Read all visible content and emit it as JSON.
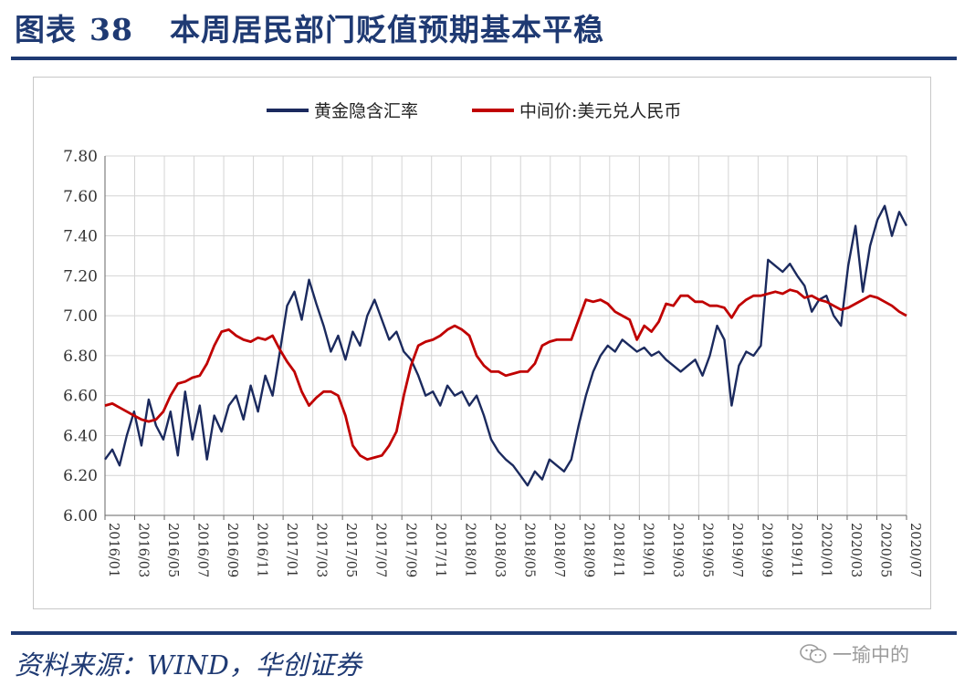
{
  "title": {
    "label": "图表",
    "number": "38",
    "text": "本周居民部门贬值预期基本平稳"
  },
  "footer": {
    "source": "资料来源：WIND，华创证券",
    "watermark": "一瑜中的",
    "watermark_icon": "wechat-icon"
  },
  "colors": {
    "navy": "#1f3a73",
    "series_gold": "#1b2a5e",
    "series_cny": "#c00000",
    "grid": "#d4d4d4"
  },
  "chart_data": {
    "type": "line",
    "title": "本周居民部门贬值预期基本平稳",
    "xlabel": "",
    "ylabel": "",
    "ylim": [
      6.0,
      7.8
    ],
    "yticks": [
      "7.80",
      "7.60",
      "7.40",
      "7.20",
      "7.00",
      "6.80",
      "6.60",
      "6.40",
      "6.20",
      "6.00"
    ],
    "xlim": [
      0,
      55
    ],
    "x_ticks": [
      "2016/01",
      "2016/03",
      "2016/05",
      "2016/07",
      "2016/09",
      "2016/11",
      "2017/01",
      "2017/03",
      "2017/05",
      "2017/07",
      "2017/09",
      "2017/11",
      "2018/01",
      "2018/03",
      "2018/05",
      "2018/07",
      "2018/09",
      "2018/11",
      "2019/01",
      "2019/03",
      "2019/05",
      "2019/07",
      "2019/09",
      "2019/11",
      "2020/01",
      "2020/03",
      "2020/05",
      "2020/07"
    ],
    "grid": true,
    "legend_position": "top-center",
    "series": [
      {
        "name": "黄金隐含汇率",
        "color": "#1b2a5e",
        "x": [
          0,
          0.5,
          1,
          1.5,
          2,
          2.5,
          3,
          3.5,
          4,
          4.5,
          5,
          5.5,
          6,
          6.5,
          7,
          7.5,
          8,
          8.5,
          9,
          9.5,
          10,
          10.5,
          11,
          11.5,
          12,
          12.5,
          13,
          13.5,
          14,
          14.5,
          15,
          15.5,
          16,
          16.5,
          17,
          17.5,
          18,
          18.5,
          19,
          19.5,
          20,
          20.5,
          21,
          21.5,
          22,
          22.5,
          23,
          23.5,
          24,
          24.5,
          25,
          25.5,
          26,
          26.5,
          27,
          27.5,
          28,
          28.5,
          29,
          29.5,
          30,
          30.5,
          31,
          31.5,
          32,
          32.5,
          33,
          33.5,
          34,
          34.5,
          35,
          35.5,
          36,
          36.5,
          37,
          37.5,
          38,
          38.5,
          39,
          39.5,
          40,
          40.5,
          41,
          41.5,
          42,
          42.5,
          43,
          43.5,
          44,
          44.5,
          45,
          45.5,
          46,
          46.5,
          47,
          47.5,
          48,
          48.5,
          49,
          49.5,
          50,
          50.5,
          51,
          51.5,
          52,
          52.5,
          53,
          53.5,
          54,
          54.5,
          55
        ],
        "values": [
          6.28,
          6.33,
          6.25,
          6.4,
          6.52,
          6.35,
          6.58,
          6.45,
          6.38,
          6.52,
          6.3,
          6.62,
          6.38,
          6.55,
          6.28,
          6.5,
          6.42,
          6.55,
          6.6,
          6.48,
          6.65,
          6.52,
          6.7,
          6.6,
          6.82,
          7.05,
          7.12,
          6.98,
          7.18,
          7.06,
          6.95,
          6.82,
          6.9,
          6.78,
          6.92,
          6.85,
          7.0,
          7.08,
          6.98,
          6.88,
          6.92,
          6.82,
          6.78,
          6.7,
          6.6,
          6.62,
          6.55,
          6.65,
          6.6,
          6.62,
          6.55,
          6.6,
          6.5,
          6.38,
          6.32,
          6.28,
          6.25,
          6.2,
          6.15,
          6.22,
          6.18,
          6.28,
          6.25,
          6.22,
          6.28,
          6.45,
          6.6,
          6.72,
          6.8,
          6.85,
          6.82,
          6.88,
          6.85,
          6.82,
          6.84,
          6.8,
          6.82,
          6.78,
          6.75,
          6.72,
          6.75,
          6.78,
          6.7,
          6.8,
          6.95,
          6.88,
          6.55,
          6.75,
          6.82,
          6.8,
          6.85,
          7.28,
          7.25,
          7.22,
          7.26,
          7.2,
          7.15,
          7.02,
          7.08,
          7.1,
          7.0,
          6.95,
          7.25,
          7.45,
          7.12,
          7.35,
          7.48,
          7.55,
          7.4,
          7.52,
          7.45
        ]
      },
      {
        "name": "中间价:美元兑人民币",
        "color": "#c00000",
        "x": [
          0,
          0.5,
          1,
          1.5,
          2,
          2.5,
          3,
          3.5,
          4,
          4.5,
          5,
          5.5,
          6,
          6.5,
          7,
          7.5,
          8,
          8.5,
          9,
          9.5,
          10,
          10.5,
          11,
          11.5,
          12,
          12.5,
          13,
          13.5,
          14,
          14.5,
          15,
          15.5,
          16,
          16.5,
          17,
          17.5,
          18,
          18.5,
          19,
          19.5,
          20,
          20.5,
          21,
          21.5,
          22,
          22.5,
          23,
          23.5,
          24,
          24.5,
          25,
          25.5,
          26,
          26.5,
          27,
          27.5,
          28,
          28.5,
          29,
          29.5,
          30,
          30.5,
          31,
          31.5,
          32,
          32.5,
          33,
          33.5,
          34,
          34.5,
          35,
          35.5,
          36,
          36.5,
          37,
          37.5,
          38,
          38.5,
          39,
          39.5,
          40,
          40.5,
          41,
          41.5,
          42,
          42.5,
          43,
          43.5,
          44,
          44.5,
          45,
          45.5,
          46,
          46.5,
          47,
          47.5,
          48,
          48.5,
          49,
          49.5,
          50,
          50.5,
          51,
          51.5,
          52,
          52.5,
          53,
          53.5,
          54,
          54.5,
          55
        ],
        "values": [
          6.55,
          6.56,
          6.54,
          6.52,
          6.5,
          6.48,
          6.47,
          6.48,
          6.52,
          6.6,
          6.66,
          6.67,
          6.69,
          6.7,
          6.76,
          6.85,
          6.92,
          6.93,
          6.9,
          6.88,
          6.87,
          6.89,
          6.88,
          6.9,
          6.83,
          6.77,
          6.72,
          6.62,
          6.55,
          6.59,
          6.62,
          6.62,
          6.6,
          6.5,
          6.35,
          6.3,
          6.28,
          6.29,
          6.3,
          6.35,
          6.42,
          6.6,
          6.75,
          6.85,
          6.87,
          6.88,
          6.9,
          6.93,
          6.95,
          6.93,
          6.9,
          6.8,
          6.75,
          6.72,
          6.72,
          6.7,
          6.71,
          6.72,
          6.72,
          6.76,
          6.85,
          6.87,
          6.88,
          6.88,
          6.88,
          6.98,
          7.08,
          7.07,
          7.08,
          7.06,
          7.02,
          7.0,
          6.98,
          6.88,
          6.95,
          6.92,
          6.97,
          7.06,
          7.05,
          7.1,
          7.1,
          7.07,
          7.07,
          7.05,
          7.05,
          7.04,
          6.99,
          7.05,
          7.08,
          7.1,
          7.1,
          7.11,
          7.12,
          7.11,
          7.13,
          7.12,
          7.09,
          7.1,
          7.08,
          7.07,
          7.05,
          7.03,
          7.04,
          7.06,
          7.08,
          7.1,
          7.09,
          7.07,
          7.05,
          7.02,
          7.0
        ]
      }
    ]
  }
}
